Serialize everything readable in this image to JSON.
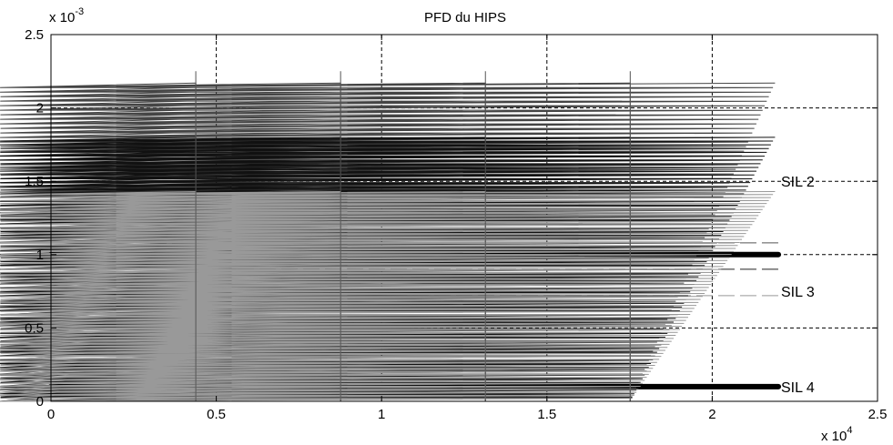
{
  "chart_data": {
    "type": "line",
    "title": "PFD du HIPS",
    "xlabel": "",
    "ylabel": "",
    "xlim": [
      0,
      25000
    ],
    "ylim": [
      0,
      0.0025
    ],
    "grid": true,
    "x_multiplier": {
      "base": "x 10",
      "exponent": "4"
    },
    "y_multiplier": {
      "base": "x 10",
      "exponent": "-3"
    },
    "x_ticks": [
      {
        "value": 0,
        "label": "0"
      },
      {
        "value": 5000,
        "label": "0.5"
      },
      {
        "value": 10000,
        "label": "1"
      },
      {
        "value": 15000,
        "label": "1.5"
      },
      {
        "value": 20000,
        "label": "2"
      },
      {
        "value": 25000,
        "label": "2.5"
      }
    ],
    "y_ticks": [
      {
        "value": 0,
        "label": "0"
      },
      {
        "value": 0.0005,
        "label": "0.5"
      },
      {
        "value": 0.001,
        "label": "1"
      },
      {
        "value": 0.0015,
        "label": "1.5"
      },
      {
        "value": 0.002,
        "label": "2"
      },
      {
        "value": 0.0025,
        "label": "2.5"
      }
    ],
    "test_interval": 4380,
    "cycles": 5,
    "series": [
      {
        "slope_peak": 0.00217,
        "color": "#444444"
      },
      {
        "slope_peak": 0.0018,
        "color": "#111111"
      },
      {
        "slope_peak": 0.00143,
        "color": "#999999"
      }
    ],
    "average_lines": [
      {
        "value": 0.00108,
        "color": "#555555"
      },
      {
        "value": 0.0009,
        "color": "#222222"
      },
      {
        "value": 0.00072,
        "color": "#999999"
      }
    ],
    "sil_boundaries": [
      {
        "value": 0.001,
        "xmax": 22000
      },
      {
        "value": 0.0001,
        "xmax": 22000
      }
    ],
    "sil_labels": [
      {
        "label": "SIL 2",
        "y": 0.0015
      },
      {
        "label": "SIL 3",
        "y": 0.00075
      },
      {
        "label": "SIL 4",
        "y": 0.0001
      }
    ]
  }
}
